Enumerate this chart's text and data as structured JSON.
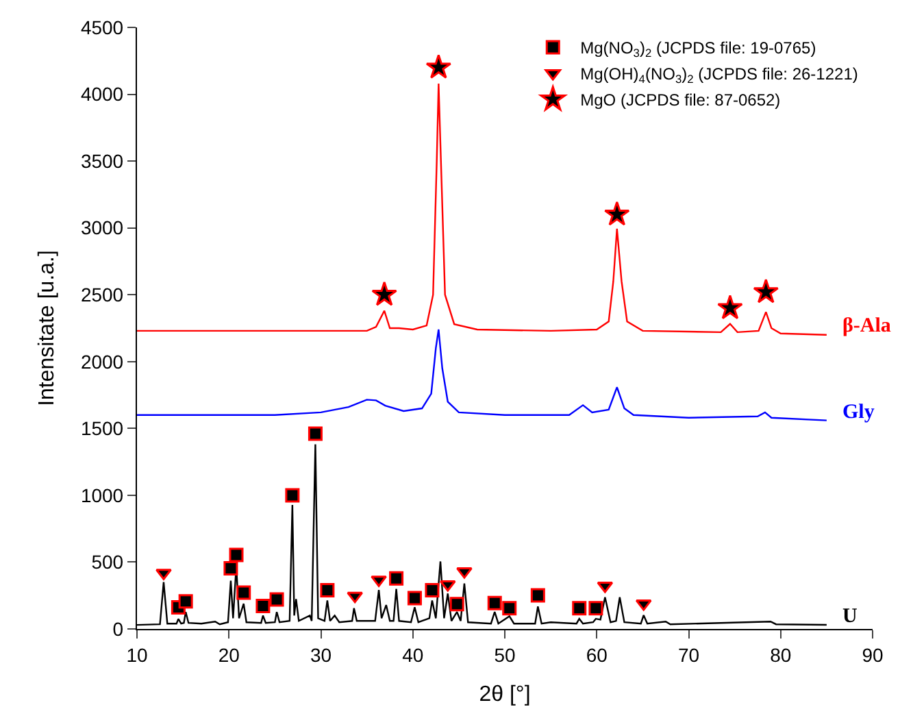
{
  "chart_data": {
    "type": "line",
    "xlabel": "2θ [°]",
    "ylabel": "Intensitate [u.a.]",
    "xlim": [
      10,
      90
    ],
    "xticks": [
      10,
      20,
      30,
      40,
      50,
      60,
      70,
      80,
      90
    ],
    "ylim": [
      0,
      4500
    ],
    "yticks": [
      0,
      500,
      1000,
      1500,
      2000,
      2500,
      3000,
      3500,
      4000,
      4500
    ],
    "legend": "top right",
    "marker": "none",
    "line_style": "solid",
    "series": [
      {
        "name": "β-Ala",
        "color": "#ff0000",
        "x": [
          10,
          35,
          36,
          36.9,
          37.5,
          38.5,
          40,
          41.5,
          42.2,
          42.6,
          42.8,
          43.1,
          43.5,
          44.5,
          47,
          55,
          60,
          61.3,
          61.8,
          62.2,
          62.7,
          63.3,
          65,
          73.5,
          74.5,
          75.3,
          77.6,
          78.4,
          79,
          80,
          85
        ],
        "values": [
          2230,
          2230,
          2260,
          2380,
          2250,
          2250,
          2240,
          2270,
          2500,
          3500,
          4080,
          3400,
          2500,
          2280,
          2240,
          2230,
          2240,
          2300,
          2600,
          2994,
          2600,
          2300,
          2230,
          2220,
          2282,
          2220,
          2230,
          2371,
          2250,
          2210,
          2200
        ]
      },
      {
        "name": "Gly",
        "color": "#0000ff",
        "x": [
          10,
          25,
          30,
          33,
          35,
          36,
          37,
          39,
          41,
          42.0,
          42.5,
          42.8,
          43.2,
          43.8,
          45,
          50,
          57,
          58.5,
          59.5,
          61.3,
          62.2,
          63,
          64,
          70,
          77.5,
          78.3,
          79,
          85
        ],
        "values": [
          1600,
          1600,
          1620,
          1660,
          1715,
          1710,
          1670,
          1630,
          1650,
          1760,
          2100,
          2240,
          1950,
          1700,
          1620,
          1600,
          1600,
          1674,
          1620,
          1640,
          1808,
          1650,
          1600,
          1580,
          1590,
          1620,
          1580,
          1560
        ]
      },
      {
        "name": "U",
        "color": "#000000",
        "x": [
          10,
          12.5,
          12.9,
          13.3,
          14.3,
          14.5,
          14.8,
          15.1,
          15.3,
          15.6,
          17,
          18.5,
          19,
          19.9,
          20.2,
          20.45,
          20.8,
          21.1,
          21.6,
          21.9,
          23.5,
          23.7,
          24,
          25,
          25.2,
          25.5,
          26.6,
          26.9,
          27.1,
          27.3,
          27.6,
          28.8,
          29.0,
          29.4,
          29.7,
          30.4,
          30.7,
          31,
          31.5,
          32,
          33.4,
          33.6,
          33.9,
          35,
          35.9,
          36.3,
          36.6,
          37.1,
          37.5,
          37.9,
          38.2,
          38.5,
          39.8,
          40.2,
          40.6,
          41.8,
          42.1,
          42.5,
          43.0,
          43.4,
          43.8,
          44.2,
          44.8,
          45.2,
          45.6,
          46,
          48.5,
          48.9,
          49.3,
          50.5,
          51,
          53.3,
          53.6,
          54,
          55,
          57.8,
          58.1,
          58.5,
          59.6,
          59.9,
          60.4,
          60.9,
          61.5,
          62.1,
          62.5,
          63,
          64.8,
          65.1,
          65.5,
          67.5,
          68,
          78.9,
          79.5,
          85
        ],
        "values": [
          30,
          35,
          350,
          40,
          40,
          75,
          40,
          45,
          127,
          45,
          40,
          55,
          35,
          50,
          361,
          80,
          471,
          80,
          189,
          50,
          45,
          100,
          45,
          50,
          127,
          50,
          60,
          928,
          100,
          224,
          60,
          100,
          60,
          1381,
          80,
          60,
          213,
          60,
          100,
          50,
          60,
          155,
          60,
          60,
          60,
          292,
          80,
          179,
          60,
          60,
          299,
          60,
          50,
          162,
          50,
          80,
          213,
          80,
          505,
          80,
          265,
          60,
          127,
          60,
          340,
          50,
          40,
          127,
          40,
          95,
          40,
          40,
          168,
          40,
          50,
          40,
          76,
          40,
          50,
          76,
          70,
          237,
          50,
          60,
          237,
          50,
          40,
          103,
          40,
          55,
          35,
          55,
          35,
          31
        ]
      },
      {
        "name": "Mg(NO$_{3}$)$_{2}$ (JCPDS file: 19-0765)",
        "color": "#000000",
        "type": "scatter",
        "marker": "square",
        "x": [
          14.5,
          15.3,
          20.2,
          20.8,
          21.6,
          23.7,
          25.2,
          26.9,
          29.4,
          30.7,
          38.2,
          40.2,
          42.1,
          44.8,
          48.9,
          50.5,
          53.6,
          58.1,
          59.9
        ],
        "values": [
          162,
          206,
          453,
          553,
          271,
          172,
          220,
          1000,
          1461,
          289,
          378,
          230,
          289,
          186,
          193,
          155,
          251,
          155,
          155
        ]
      },
      {
        "name": "Mg(OH)$_{4}$(NO$_{3}$)$_{2}$ (JCPDS file: 26-1221)",
        "color": "#000000",
        "type": "scatter",
        "marker": "triangle",
        "x": [
          12.9,
          33.7,
          36.3,
          43.8,
          45.6,
          60.9,
          65.1
        ],
        "values": [
          419,
          247,
          368,
          333,
          430,
          323,
          189
        ]
      },
      {
        "name": "MgO (JCPDS file: 87-0652)",
        "color": "#000000",
        "type": "scatter",
        "marker": "star",
        "x": [
          36.9,
          42.8,
          62.2,
          74.5,
          78.4
        ],
        "values": [
          2500,
          4200,
          3100,
          2400,
          2520
        ]
      }
    ]
  }
}
